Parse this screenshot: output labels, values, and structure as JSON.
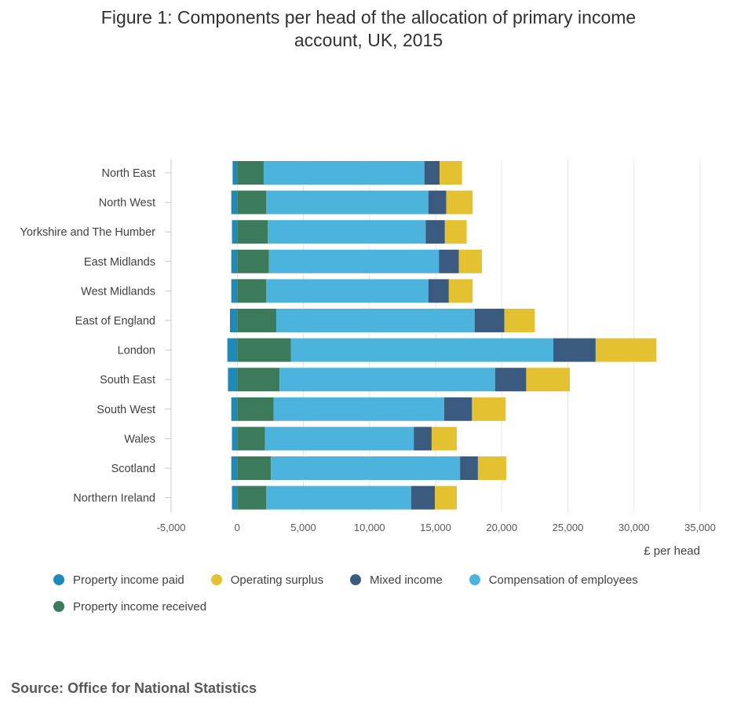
{
  "title_line1": "Figure 1: Components per head of the allocation of primary income",
  "title_line2": "account, UK, 2015",
  "source": "Source: Office for National Statistics",
  "chart_data": {
    "type": "bar",
    "orientation": "horizontal",
    "stacked": true,
    "title": "Figure 1: Components per head of the allocation of primary income account, UK, 2015",
    "xlabel": "£ per head",
    "ylabel": "",
    "xlim": [
      -5000,
      35000
    ],
    "xticks": [
      -5000,
      0,
      5000,
      10000,
      15000,
      20000,
      25000,
      30000,
      35000
    ],
    "xtick_labels": [
      "-5,000",
      "0",
      "5,000",
      "10,000",
      "15,000",
      "20,000",
      "25,000",
      "30,000",
      "35,000"
    ],
    "grid": "vertical",
    "legend_position": "bottom",
    "categories": [
      "North East",
      "North West",
      "Yorkshire and The Humber",
      "East Midlands",
      "West Midlands",
      "East of England",
      "London",
      "South East",
      "South West",
      "Wales",
      "Scotland",
      "Northern Ireland"
    ],
    "series": [
      {
        "name": "Property income paid",
        "color": "#1f8ab8",
        "values": [
          -350,
          -450,
          -400,
          -450,
          -450,
          -550,
          -750,
          -700,
          -450,
          -400,
          -450,
          -400
        ]
      },
      {
        "name": "Property income received",
        "color": "#3b7a5a",
        "values": [
          2000,
          2200,
          2300,
          2400,
          2200,
          2950,
          4050,
          3200,
          2750,
          2100,
          2550,
          2200
        ]
      },
      {
        "name": "Compensation of employees",
        "color": "#4cb4dc",
        "values": [
          12150,
          12250,
          11950,
          12850,
          12250,
          15000,
          19850,
          16300,
          12900,
          11250,
          14300,
          10950
        ]
      },
      {
        "name": "Mixed income",
        "color": "#3a5b7f",
        "values": [
          1150,
          1350,
          1450,
          1500,
          1550,
          2250,
          3200,
          2350,
          2100,
          1350,
          1350,
          1800
        ]
      },
      {
        "name": "Operating surplus",
        "color": "#e3c131",
        "values": [
          1700,
          2000,
          1650,
          1750,
          1800,
          2300,
          4600,
          3300,
          2550,
          1900,
          2150,
          1650
        ]
      }
    ]
  },
  "legend": [
    {
      "label": "Property income paid",
      "color": "#1f8ab8"
    },
    {
      "label": "Operating surplus",
      "color": "#e3c131"
    },
    {
      "label": "Mixed income",
      "color": "#3a5b7f"
    },
    {
      "label": "Compensation of employees",
      "color": "#4cb4dc"
    },
    {
      "label": "Property income received",
      "color": "#3b7a5a"
    }
  ]
}
